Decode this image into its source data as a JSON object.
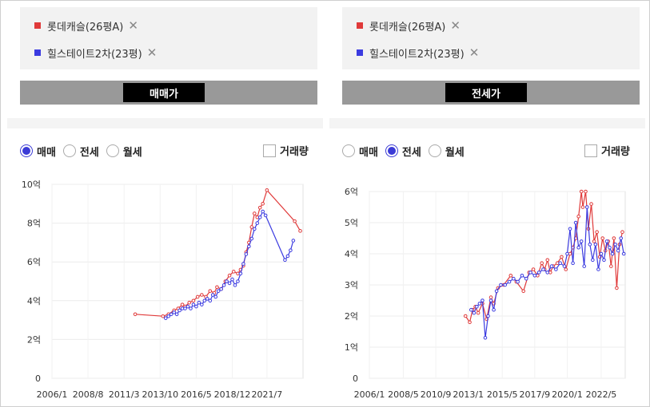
{
  "left": {
    "legend": [
      {
        "label": "롯데캐슬(26평A)",
        "color": "#e03a3a"
      },
      {
        "label": "힐스테이트2차(23평)",
        "color": "#3b3be0"
      }
    ],
    "mode_button": "매매가",
    "radios": [
      {
        "label": "매매",
        "checked": true
      },
      {
        "label": "전세",
        "checked": false
      },
      {
        "label": "월세",
        "checked": false
      }
    ],
    "checkbox": {
      "label": "거래량",
      "checked": false
    }
  },
  "right": {
    "legend": [
      {
        "label": "롯데캐슬(26평A)",
        "color": "#e03a3a"
      },
      {
        "label": "힐스테이트2차(23평)",
        "color": "#3b3be0"
      }
    ],
    "mode_button": "전세가",
    "radios": [
      {
        "label": "매매",
        "checked": false
      },
      {
        "label": "전세",
        "checked": true
      },
      {
        "label": "월세",
        "checked": false
      }
    ],
    "checkbox": {
      "label": "거래량",
      "checked": false
    }
  },
  "chart_data": [
    {
      "type": "line",
      "ylim": [
        0,
        10
      ],
      "yticks": [
        0,
        2,
        4,
        6,
        8,
        10
      ],
      "ytick_labels": [
        "0",
        "2억",
        "4억",
        "6억",
        "8억",
        "10억"
      ],
      "xlim": [
        2006.0,
        2024.1
      ],
      "xticks": [
        2006.0,
        2008.6,
        2011.2,
        2013.8,
        2016.4,
        2019.0,
        2021.5
      ],
      "xtick_labels": [
        "2006/1",
        "2008/8",
        "2011/3",
        "2013/10",
        "2016/5",
        "2018/12",
        "2021/7"
      ],
      "grid": true,
      "series": [
        {
          "name": "롯데캐슬(26평A)",
          "color": "#e03a3a",
          "x": [
            2012.0,
            2014.0,
            2014.4,
            2014.8,
            2015.1,
            2015.4,
            2015.6,
            2015.9,
            2016.2,
            2016.5,
            2016.8,
            2017.1,
            2017.4,
            2017.7,
            2017.9,
            2018.2,
            2018.5,
            2018.8,
            2019.1,
            2019.4,
            2019.6,
            2019.8,
            2020.0,
            2020.2,
            2020.4,
            2020.6,
            2020.8,
            2021.0,
            2021.2,
            2021.5,
            2023.5,
            2023.9
          ],
          "y": [
            3.3,
            3.2,
            3.3,
            3.5,
            3.6,
            3.8,
            3.7,
            3.9,
            4.0,
            4.2,
            4.3,
            4.2,
            4.5,
            4.4,
            4.7,
            4.6,
            5.0,
            5.3,
            5.5,
            5.4,
            5.6,
            5.8,
            6.5,
            7.0,
            7.8,
            8.5,
            8.3,
            8.8,
            9.0,
            9.7,
            8.1,
            7.6
          ]
        },
        {
          "name": "힐스테이트2차(23평)",
          "color": "#3b3be0",
          "x": [
            2014.2,
            2014.4,
            2014.6,
            2014.8,
            2015.0,
            2015.2,
            2015.4,
            2015.6,
            2015.8,
            2016.0,
            2016.2,
            2016.4,
            2016.6,
            2016.8,
            2017.0,
            2017.2,
            2017.4,
            2017.6,
            2017.8,
            2018.0,
            2018.2,
            2018.4,
            2018.6,
            2018.8,
            2019.0,
            2019.2,
            2019.4,
            2019.6,
            2019.8,
            2020.0,
            2020.2,
            2020.4,
            2020.6,
            2020.8,
            2021.0,
            2021.2,
            2021.4,
            2022.8,
            2023.0,
            2023.2,
            2023.4
          ],
          "y": [
            3.1,
            3.2,
            3.3,
            3.4,
            3.3,
            3.5,
            3.6,
            3.6,
            3.7,
            3.6,
            3.8,
            3.7,
            3.9,
            3.8,
            4.0,
            4.1,
            4.0,
            4.3,
            4.2,
            4.5,
            4.6,
            4.8,
            5.0,
            4.9,
            5.1,
            4.8,
            5.0,
            5.4,
            5.9,
            6.4,
            6.8,
            7.2,
            7.7,
            8.0,
            8.3,
            8.6,
            8.4,
            6.1,
            6.3,
            6.6,
            7.1
          ]
        }
      ]
    },
    {
      "type": "line",
      "ylim": [
        0,
        6
      ],
      "yticks": [
        0,
        1,
        2,
        3,
        4,
        5,
        6
      ],
      "ytick_labels": [
        "0",
        "1억",
        "2억",
        "3억",
        "4억",
        "5억",
        "6억"
      ],
      "xlim": [
        2006.0,
        2024.1
      ],
      "xticks": [
        2006.0,
        2008.4,
        2010.7,
        2013.0,
        2015.4,
        2017.7,
        2020.0,
        2022.4
      ],
      "xtick_labels": [
        "2006/1",
        "2008/5",
        "2010/9",
        "2013/1",
        "2015/5",
        "2017/9",
        "2020/1",
        "2022/5"
      ],
      "grid": true,
      "series": [
        {
          "name": "롯데캐슬(26평A)",
          "color": "#e03a3a",
          "x": [
            2012.8,
            2013.1,
            2013.3,
            2013.5,
            2013.7,
            2014.0,
            2014.3,
            2014.6,
            2014.8,
            2015.1,
            2015.5,
            2016.0,
            2016.4,
            2016.9,
            2017.3,
            2017.6,
            2017.9,
            2018.2,
            2018.4,
            2018.6,
            2018.8,
            2019.0,
            2019.3,
            2019.6,
            2019.9,
            2020.2,
            2020.4,
            2020.6,
            2020.8,
            2021.0,
            2021.1,
            2021.3,
            2021.5,
            2021.7,
            2021.9,
            2022.1,
            2022.3,
            2022.5,
            2022.7,
            2022.9,
            2023.1,
            2023.3,
            2023.5,
            2023.7,
            2023.9
          ],
          "y": [
            2.0,
            1.8,
            2.2,
            2.3,
            2.1,
            2.4,
            1.9,
            2.6,
            2.4,
            2.9,
            3.0,
            3.3,
            3.1,
            2.8,
            3.4,
            3.5,
            3.3,
            3.7,
            3.5,
            3.8,
            3.4,
            3.6,
            3.7,
            3.9,
            3.5,
            4.0,
            4.2,
            4.5,
            5.2,
            6.0,
            5.5,
            6.0,
            4.8,
            5.6,
            4.4,
            4.7,
            3.9,
            4.5,
            4.1,
            4.4,
            3.6,
            4.5,
            2.9,
            4.3,
            4.7
          ]
        },
        {
          "name": "힐스테이트2차(23평)",
          "color": "#3b3be0",
          "x": [
            2013.2,
            2013.4,
            2013.6,
            2013.8,
            2014.0,
            2014.2,
            2014.4,
            2014.6,
            2014.8,
            2015.0,
            2015.3,
            2015.6,
            2015.9,
            2016.2,
            2016.5,
            2016.8,
            2017.1,
            2017.4,
            2017.7,
            2018.0,
            2018.3,
            2018.6,
            2018.9,
            2019.2,
            2019.5,
            2019.8,
            2020.0,
            2020.2,
            2020.4,
            2020.6,
            2020.8,
            2021.0,
            2021.2,
            2021.4,
            2021.6,
            2021.8,
            2022.0,
            2022.2,
            2022.4,
            2022.6,
            2022.8,
            2023.0,
            2023.2,
            2023.4,
            2023.6,
            2023.8,
            2024.0
          ],
          "y": [
            2.2,
            2.1,
            2.3,
            2.4,
            2.5,
            1.3,
            2.0,
            2.5,
            2.2,
            2.8,
            3.0,
            3.0,
            3.1,
            3.2,
            3.1,
            3.3,
            3.2,
            3.4,
            3.3,
            3.4,
            3.5,
            3.4,
            3.6,
            3.5,
            3.7,
            3.6,
            4.0,
            4.8,
            3.7,
            5.0,
            4.2,
            4.4,
            3.6,
            5.5,
            4.3,
            3.8,
            4.3,
            3.5,
            4.0,
            3.8,
            4.4,
            4.2,
            4.0,
            4.3,
            4.1,
            4.5,
            4.0
          ]
        }
      ]
    }
  ]
}
